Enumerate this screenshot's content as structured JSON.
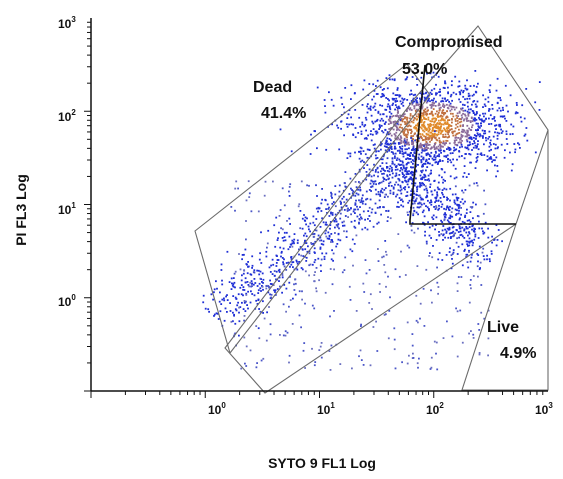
{
  "chart_data": {
    "type": "scatter",
    "title": "",
    "xlabel": "SYTO 9 FL1 Log",
    "ylabel": "PI FL3 Log",
    "xscale": "log",
    "yscale": "log",
    "xlim": [
      0.1,
      1000
    ],
    "ylim": [
      0.1,
      1000
    ],
    "x_ticks": [
      {
        "value": 1,
        "base": "10",
        "exp": "0"
      },
      {
        "value": 10,
        "base": "10",
        "exp": "1"
      },
      {
        "value": 100,
        "base": "10",
        "exp": "2"
      },
      {
        "value": 1000,
        "base": "10",
        "exp": "3"
      }
    ],
    "y_ticks": [
      {
        "value": 1,
        "base": "10",
        "exp": "0"
      },
      {
        "value": 10,
        "base": "10",
        "exp": "1"
      },
      {
        "value": 100,
        "base": "10",
        "exp": "2"
      },
      {
        "value": 1000,
        "base": "10",
        "exp": "3"
      }
    ],
    "gates": [
      {
        "name": "Dead",
        "percent": "41.4%"
      },
      {
        "name": "Compromised",
        "percent": "53.0%"
      },
      {
        "name": "Live",
        "percent": "4.9%"
      }
    ],
    "density_colors": [
      "#1f2fd6",
      "#2a3ad0",
      "#4a55c8",
      "#8a6a9a",
      "#c07040",
      "#e08a2a"
    ],
    "grid": false
  }
}
